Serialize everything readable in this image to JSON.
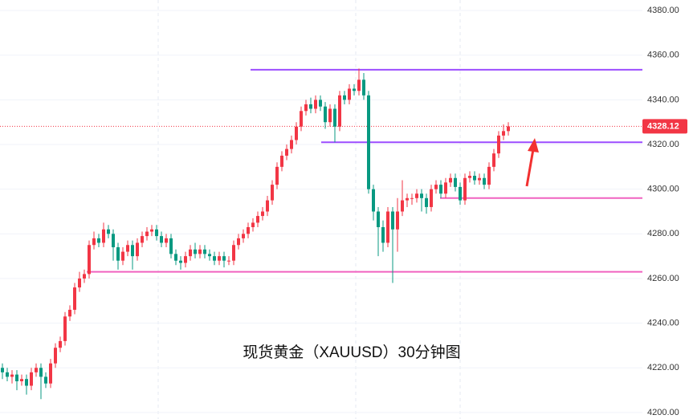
{
  "chart_data": {
    "type": "candlestick",
    "annotation": "现货黄金（XAUUSD）30分钟图",
    "up_color": "#f23645",
    "down_color": "#089981",
    "ylim": [
      4197.1,
      4384.7
    ],
    "yticks": [
      {
        "value": 4200,
        "label": "4200.00"
      },
      {
        "value": 4220,
        "label": "4220.00"
      },
      {
        "value": 4240,
        "label": "4240.00"
      },
      {
        "value": 4260,
        "label": "4260.00"
      },
      {
        "value": 4280,
        "label": "4280.00"
      },
      {
        "value": 4300,
        "label": "4300.00"
      },
      {
        "value": 4320,
        "label": "4320.00"
      },
      {
        "value": 4340,
        "label": "4340.00"
      },
      {
        "value": 4360,
        "label": "4360.00"
      },
      {
        "value": 4380,
        "label": "4380.00"
      }
    ],
    "grid": true,
    "levels": [
      {
        "value": 4353.5,
        "color": "#9c4dff"
      },
      {
        "value": 4321,
        "color": "#9c4dff"
      },
      {
        "value": 4296,
        "color": "#f062c0"
      },
      {
        "value": 4263,
        "color": "#f062c0"
      }
    ],
    "open": [
      4220,
      4218,
      4216,
      4217,
      4214,
      4215,
      4212,
      4218,
      4220,
      4216,
      4213,
      4222,
      4229,
      4232,
      4243,
      4246,
      4256,
      4260,
      4262,
      4275,
      4278,
      4276,
      4282,
      4280,
      4274,
      4268,
      4272,
      4275,
      4270,
      4276,
      4279,
      4281,
      4282,
      4279,
      4276,
      4278,
      4271,
      4268,
      4267,
      4270,
      4273,
      4271,
      4273,
      4271,
      4270,
      4268,
      4270,
      4268,
      4268,
      4275,
      4278,
      4280,
      4283,
      4285,
      4288,
      4290,
      4295,
      4302,
      4310,
      4315,
      4318,
      4322,
      4328,
      4335,
      4338,
      4336,
      4340,
      4337,
      4330,
      4336,
      4328,
      4342,
      4340,
      4345,
      4344,
      4349,
      4342,
      4300,
      4290,
      4283,
      4276,
      4290,
      4282,
      4290,
      4295,
      4296,
      4296,
      4298,
      4296,
      4292,
      4300,
      4302,
      4298,
      4303,
      4305,
      4301,
      4295,
      4305,
      4306,
      4304,
      4305,
      4302,
      4310,
      4316,
      4324,
      4326
    ],
    "high": [
      4222,
      4220,
      4219,
      4219,
      4217,
      4217,
      4220,
      4222,
      4222,
      4218,
      4224,
      4231,
      4234,
      4245,
      4248,
      4258,
      4263,
      4264,
      4277,
      4281,
      4280,
      4285,
      4284,
      4282,
      4276,
      4274,
      4277,
      4277,
      4278,
      4281,
      4283,
      4284,
      4284,
      4281,
      4280,
      4280,
      4273,
      4270,
      4272,
      4275,
      4276,
      4275,
      4275,
      4273,
      4272,
      4272,
      4272,
      4270,
      4277,
      4280,
      4282,
      4285,
      4287,
      4290,
      4292,
      4297,
      4304,
      4312,
      4317,
      4320,
      4324,
      4330,
      4337,
      4340,
      4341,
      4342,
      4342,
      4339,
      4338,
      4338,
      4344,
      4344,
      4347,
      4347,
      4354,
      4352,
      4344,
      4302,
      4292,
      4286,
      4292,
      4292,
      4296,
      4304,
      4298,
      4298,
      4300,
      4300,
      4298,
      4302,
      4304,
      4304,
      4305,
      4307,
      4307,
      4303,
      4307,
      4308,
      4308,
      4307,
      4307,
      4312,
      4318,
      4326,
      4329,
      4330
    ],
    "low": [
      4215,
      4214,
      4213,
      4210,
      4212,
      4208,
      4210,
      4216,
      4206,
      4211,
      4211,
      4220,
      4227,
      4230,
      4241,
      4244,
      4254,
      4258,
      4260,
      4273,
      4274,
      4274,
      4278,
      4268,
      4264,
      4266,
      4270,
      4264,
      4268,
      4274,
      4277,
      4279,
      4277,
      4274,
      4274,
      4269,
      4266,
      4264,
      4265,
      4268,
      4269,
      4269,
      4269,
      4268,
      4266,
      4266,
      4265,
      4266,
      4266,
      4273,
      4276,
      4278,
      4281,
      4283,
      4286,
      4288,
      4293,
      4300,
      4308,
      4313,
      4316,
      4320,
      4326,
      4333,
      4334,
      4334,
      4335,
      4327,
      4328,
      4321,
      4326,
      4338,
      4338,
      4342,
      4342,
      4340,
      4298,
      4286,
      4270,
      4272,
      4274,
      4258,
      4272,
      4288,
      4292,
      4293,
      4294,
      4290,
      4289,
      4290,
      4298,
      4296,
      4296,
      4301,
      4299,
      4293,
      4293,
      4303,
      4302,
      4302,
      4300,
      4300,
      4308,
      4314,
      4322,
      4324
    ],
    "close": [
      4218,
      4216,
      4217,
      4214,
      4215,
      4212,
      4218,
      4220,
      4216,
      4213,
      4222,
      4229,
      4232,
      4243,
      4246,
      4256,
      4260,
      4262,
      4275,
      4278,
      4276,
      4282,
      4280,
      4274,
      4268,
      4272,
      4275,
      4270,
      4276,
      4279,
      4281,
      4282,
      4279,
      4276,
      4278,
      4271,
      4268,
      4267,
      4270,
      4273,
      4271,
      4273,
      4271,
      4270,
      4268,
      4270,
      4268,
      4268,
      4275,
      4278,
      4280,
      4283,
      4285,
      4288,
      4290,
      4295,
      4302,
      4310,
      4315,
      4318,
      4322,
      4328,
      4335,
      4338,
      4336,
      4340,
      4337,
      4330,
      4336,
      4328,
      4342,
      4340,
      4345,
      4344,
      4349,
      4342,
      4300,
      4290,
      4283,
      4276,
      4290,
      4282,
      4290,
      4295,
      4296,
      4296,
      4298,
      4296,
      4292,
      4300,
      4302,
      4298,
      4303,
      4305,
      4301,
      4295,
      4305,
      4306,
      4304,
      4305,
      4302,
      4310,
      4316,
      4324,
      4326,
      4328.12
    ]
  }
}
